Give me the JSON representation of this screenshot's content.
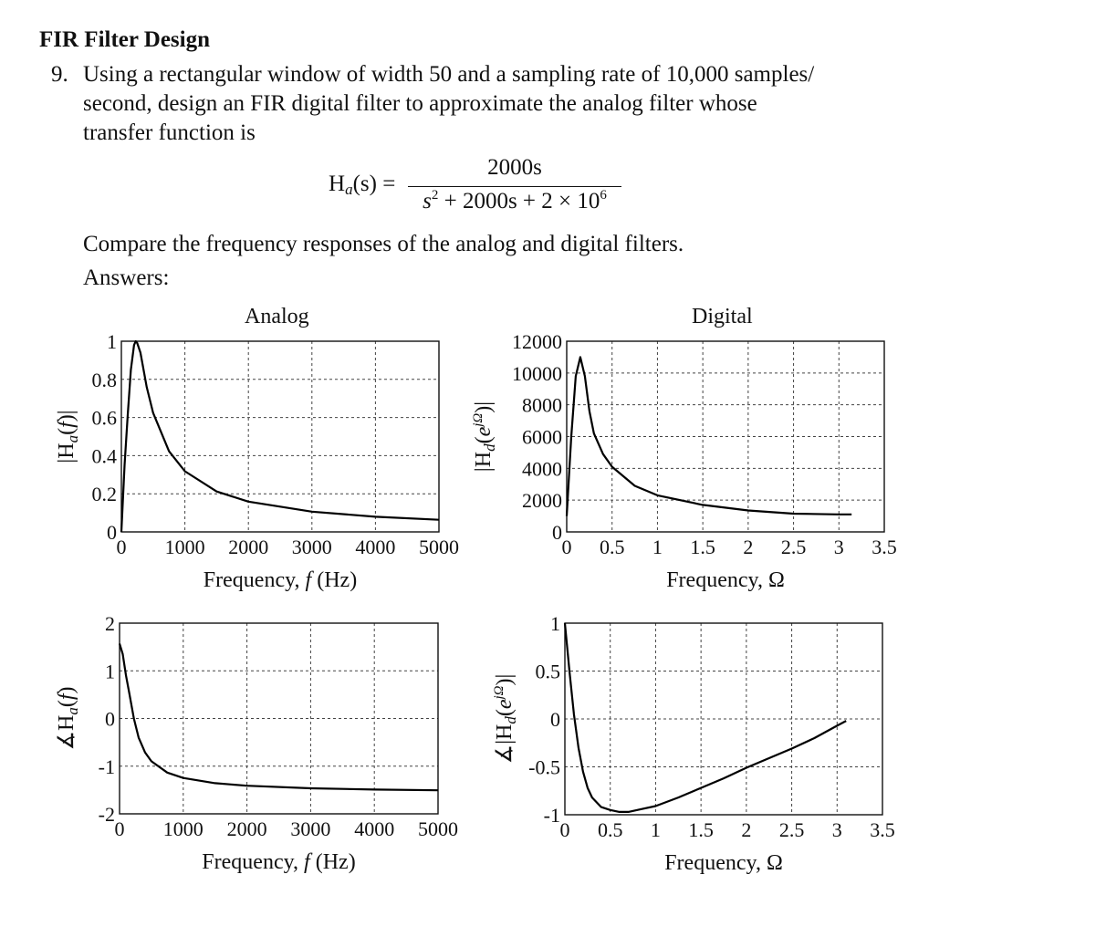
{
  "section_title": "FIR Filter Design",
  "problem": {
    "number": "9.",
    "lines": [
      "Using a rectangular window of width 50 and a sampling rate of 10,000 samples/",
      "second, design an FIR digital filter to approximate the analog filter whose",
      "transfer function is"
    ],
    "equation": {
      "lhs_H": "H",
      "lhs_sub": "a",
      "lhs_arg": "(s) =",
      "numerator": "2000s",
      "denominator_s": "s",
      "denominator_exp": "2",
      "denominator_rest": " + 2000s + 2 × 10",
      "denominator_exp2": "6"
    },
    "compare_text": "Compare the frequency responses of the analog and digital filters.",
    "answers_label": "Answers:"
  },
  "column_titles": {
    "analog": "Analog",
    "digital": "Digital"
  },
  "chart_data": [
    {
      "id": "analog-magnitude",
      "type": "line",
      "title": "Analog",
      "xlabel": "Frequency, f (Hz)",
      "ylabel": "|Ha(f)|",
      "xlim": [
        0,
        5000
      ],
      "ylim": [
        0,
        1
      ],
      "xticks": [
        "0",
        "1000",
        "2000",
        "3000",
        "4000",
        "5000"
      ],
      "xtick_values": [
        0,
        1000,
        2000,
        3000,
        4000,
        5000
      ],
      "yticks": [
        "0",
        "0.2",
        "0.4",
        "0.6",
        "0.8",
        "1"
      ],
      "ytick_values": [
        0,
        0.2,
        0.4,
        0.6,
        0.8,
        1
      ],
      "grid": true,
      "x": [
        0,
        50,
        100,
        150,
        200,
        225,
        250,
        300,
        400,
        500,
        750,
        1000,
        1500,
        2000,
        3000,
        4000,
        5000
      ],
      "y": [
        0,
        0.35,
        0.616,
        0.85,
        0.98,
        1.0,
        0.99,
        0.94,
        0.759,
        0.624,
        0.423,
        0.318,
        0.212,
        0.159,
        0.106,
        0.0795,
        0.0637
      ]
    },
    {
      "id": "digital-magnitude",
      "type": "line",
      "title": "Digital",
      "xlabel": "Frequency, Ω",
      "ylabel": "|Hd(e^jΩ)|",
      "xlim": [
        0,
        3.5
      ],
      "ylim": [
        0,
        12000
      ],
      "xticks": [
        "0",
        "0.5",
        "1",
        "1.5",
        "2",
        "2.5",
        "3",
        "3.5"
      ],
      "xtick_values": [
        0,
        0.5,
        1,
        1.5,
        2,
        2.5,
        3,
        3.5
      ],
      "yticks": [
        "0",
        "2000",
        "4000",
        "6000",
        "8000",
        "10000",
        "12000"
      ],
      "ytick_values": [
        0,
        2000,
        4000,
        6000,
        8000,
        10000,
        12000
      ],
      "grid": true,
      "x": [
        0,
        0.05,
        0.1,
        0.15,
        0.2,
        0.25,
        0.3,
        0.4,
        0.5,
        0.75,
        1,
        1.5,
        2,
        2.5,
        3,
        3.14
      ],
      "y": [
        1000,
        6000,
        9800,
        11000,
        9800,
        7600,
        6200,
        4900,
        4100,
        2900,
        2300,
        1700,
        1350,
        1150,
        1100,
        1100
      ]
    },
    {
      "id": "analog-phase",
      "type": "line",
      "title": "",
      "xlabel": "Frequency, f (Hz)",
      "ylabel": "∡Ha(f)",
      "xlim": [
        0,
        5000
      ],
      "ylim": [
        -2,
        2
      ],
      "xticks": [
        "0",
        "1000",
        "2000",
        "3000",
        "4000",
        "5000"
      ],
      "xtick_values": [
        0,
        1000,
        2000,
        3000,
        4000,
        5000
      ],
      "yticks": [
        "-2",
        "-1",
        "0",
        "1",
        "2"
      ],
      "ytick_values": [
        -2,
        -1,
        0,
        1,
        2
      ],
      "grid": true,
      "x": [
        0,
        50,
        100,
        150,
        225,
        300,
        400,
        500,
        750,
        1000,
        1500,
        2000,
        3000,
        4000,
        5000
      ],
      "y": [
        1.571,
        1.35,
        0.907,
        0.55,
        0.0,
        -0.4,
        -0.71,
        -0.897,
        -1.134,
        -1.247,
        -1.357,
        -1.411,
        -1.465,
        -1.491,
        -1.507
      ]
    },
    {
      "id": "digital-phase",
      "type": "line",
      "title": "",
      "xlabel": "Frequency, Ω",
      "ylabel": "∡|Hd(e^jΩ)|",
      "xlim": [
        0,
        3.5
      ],
      "ylim": [
        -1,
        1
      ],
      "xticks": [
        "0",
        "0.5",
        "1",
        "1.5",
        "2",
        "2.5",
        "3",
        "3.5"
      ],
      "xtick_values": [
        0,
        0.5,
        1,
        1.5,
        2,
        2.5,
        3,
        3.5
      ],
      "yticks": [
        "-1",
        "-0.5",
        "0",
        "0.5",
        "1"
      ],
      "ytick_values": [
        -1,
        -0.5,
        0,
        0.5,
        1
      ],
      "grid": true,
      "x": [
        0,
        0.05,
        0.1,
        0.15,
        0.2,
        0.25,
        0.3,
        0.4,
        0.5,
        0.6,
        0.7,
        0.85,
        1,
        1.25,
        1.5,
        1.75,
        2,
        2.25,
        2.5,
        2.75,
        3,
        3.1
      ],
      "y": [
        1.0,
        0.5,
        0.05,
        -0.3,
        -0.55,
        -0.72,
        -0.82,
        -0.92,
        -0.95,
        -0.97,
        -0.97,
        -0.94,
        -0.91,
        -0.82,
        -0.72,
        -0.62,
        -0.51,
        -0.41,
        -0.31,
        -0.2,
        -0.07,
        -0.02
      ]
    }
  ]
}
